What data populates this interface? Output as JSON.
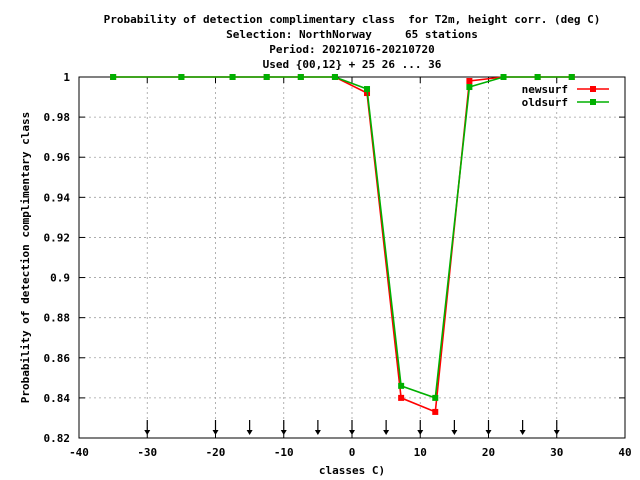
{
  "chart_data": {
    "type": "line",
    "title_lines": [
      "Probability of detection complimentary class  for T2m, height corr. (deg C)",
      "Selection: NorthNorway     65 stations",
      "Period: 20210716-20210720",
      "Used {00,12} + 25 26 ... 36"
    ],
    "xlabel": "classes C)",
    "ylabel": "Probability of detection complimentary class",
    "xlim": [
      -40,
      40
    ],
    "ylim": [
      0.82,
      1.0
    ],
    "xticks": [
      -40,
      -30,
      -20,
      -10,
      0,
      10,
      20,
      30,
      40
    ],
    "xtick_labels": [
      "-40",
      "-30",
      "-20",
      "-10",
      "0",
      "10",
      "20",
      "30",
      "40"
    ],
    "yticks": [
      0.82,
      0.84,
      0.86,
      0.88,
      0.9,
      0.92,
      0.94,
      0.96,
      0.98,
      1.0
    ],
    "ytick_labels": [
      "0.82",
      "0.84",
      "0.86",
      "0.88",
      "0.9",
      "0.92",
      "0.94",
      "0.96",
      "0.98",
      "1"
    ],
    "grid": true,
    "legend_position": "top-right",
    "arrow_markers_x": [
      -30,
      -20,
      -15,
      -10,
      -5,
      0,
      5,
      10,
      15,
      20,
      25,
      30
    ],
    "series": [
      {
        "name": "newsurf",
        "color": "#ff0000",
        "x": [
          -35,
          -25,
          -17.5,
          -12.5,
          -7.5,
          -2.5,
          2.2,
          7.2,
          12.2,
          17.2,
          22.2,
          27.2,
          32.2
        ],
        "y": [
          1.0,
          1.0,
          1.0,
          1.0,
          1.0,
          1.0,
          0.992,
          0.84,
          0.833,
          0.998,
          1.0,
          1.0,
          1.0
        ]
      },
      {
        "name": "oldsurf",
        "color": "#00b000",
        "x": [
          -35,
          -25,
          -17.5,
          -12.5,
          -7.5,
          -2.5,
          2.2,
          7.2,
          12.2,
          17.2,
          22.2,
          27.2,
          32.2
        ],
        "y": [
          1.0,
          1.0,
          1.0,
          1.0,
          1.0,
          1.0,
          0.994,
          0.846,
          0.84,
          0.995,
          1.0,
          1.0,
          1.0
        ]
      }
    ]
  }
}
